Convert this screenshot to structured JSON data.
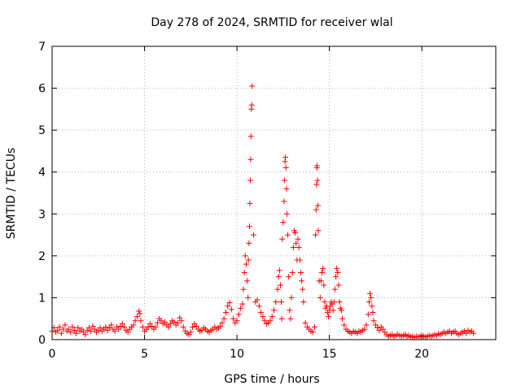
{
  "chart_data": {
    "type": "scatter",
    "title": "Day 278 of 2024, SRMTID for receiver wlal",
    "xlabel": "GPS time / hours",
    "ylabel": "SRMTID / TECUs",
    "xlim": [
      0,
      24
    ],
    "ylim": [
      0,
      7
    ],
    "xticks": [
      0,
      5,
      10,
      15,
      20
    ],
    "yticks": [
      0,
      1,
      2,
      3,
      4,
      5,
      6,
      7
    ],
    "grid": true,
    "marker": "plus",
    "color": "#ff0000",
    "series": [
      {
        "name": "SRMTID",
        "points": [
          [
            0.0,
            0.2
          ],
          [
            0.1,
            0.28
          ],
          [
            0.2,
            0.18
          ],
          [
            0.3,
            0.22
          ],
          [
            0.4,
            0.3
          ],
          [
            0.5,
            0.15
          ],
          [
            0.6,
            0.25
          ],
          [
            0.7,
            0.35
          ],
          [
            0.8,
            0.2
          ],
          [
            0.9,
            0.25
          ],
          [
            1.0,
            0.18
          ],
          [
            1.1,
            0.3
          ],
          [
            1.2,
            0.22
          ],
          [
            1.3,
            0.15
          ],
          [
            1.4,
            0.28
          ],
          [
            1.5,
            0.2
          ],
          [
            1.6,
            0.25
          ],
          [
            1.7,
            0.18
          ],
          [
            1.8,
            0.12
          ],
          [
            1.9,
            0.22
          ],
          [
            2.0,
            0.28
          ],
          [
            2.1,
            0.2
          ],
          [
            2.2,
            0.32
          ],
          [
            2.3,
            0.25
          ],
          [
            2.4,
            0.18
          ],
          [
            2.5,
            0.22
          ],
          [
            2.6,
            0.28
          ],
          [
            2.7,
            0.2
          ],
          [
            2.8,
            0.25
          ],
          [
            2.9,
            0.3
          ],
          [
            3.0,
            0.22
          ],
          [
            3.1,
            0.28
          ],
          [
            3.2,
            0.35
          ],
          [
            3.3,
            0.25
          ],
          [
            3.4,
            0.2
          ],
          [
            3.5,
            0.3
          ],
          [
            3.6,
            0.25
          ],
          [
            3.7,
            0.32
          ],
          [
            3.8,
            0.38
          ],
          [
            3.9,
            0.3
          ],
          [
            4.0,
            0.22
          ],
          [
            4.1,
            0.18
          ],
          [
            4.2,
            0.25
          ],
          [
            4.3,
            0.3
          ],
          [
            4.4,
            0.35
          ],
          [
            4.5,
            0.45
          ],
          [
            4.6,
            0.55
          ],
          [
            4.7,
            0.68
          ],
          [
            4.75,
            0.62
          ],
          [
            4.8,
            0.45
          ],
          [
            4.9,
            0.3
          ],
          [
            5.0,
            0.2
          ],
          [
            5.1,
            0.25
          ],
          [
            5.2,
            0.3
          ],
          [
            5.3,
            0.38
          ],
          [
            5.4,
            0.32
          ],
          [
            5.5,
            0.25
          ],
          [
            5.6,
            0.3
          ],
          [
            5.7,
            0.4
          ],
          [
            5.8,
            0.5
          ],
          [
            5.9,
            0.45
          ],
          [
            6.0,
            0.38
          ],
          [
            6.1,
            0.42
          ],
          [
            6.2,
            0.35
          ],
          [
            6.3,
            0.3
          ],
          [
            6.4,
            0.38
          ],
          [
            6.5,
            0.45
          ],
          [
            6.6,
            0.42
          ],
          [
            6.7,
            0.35
          ],
          [
            6.8,
            0.4
          ],
          [
            6.9,
            0.52
          ],
          [
            7.0,
            0.45
          ],
          [
            7.1,
            0.3
          ],
          [
            7.2,
            0.2
          ],
          [
            7.3,
            0.15
          ],
          [
            7.4,
            0.12
          ],
          [
            7.5,
            0.18
          ],
          [
            7.6,
            0.3
          ],
          [
            7.7,
            0.38
          ],
          [
            7.8,
            0.32
          ],
          [
            7.9,
            0.25
          ],
          [
            8.0,
            0.2
          ],
          [
            8.1,
            0.22
          ],
          [
            8.2,
            0.28
          ],
          [
            8.3,
            0.25
          ],
          [
            8.4,
            0.2
          ],
          [
            8.5,
            0.18
          ],
          [
            8.6,
            0.22
          ],
          [
            8.7,
            0.25
          ],
          [
            8.8,
            0.3
          ],
          [
            8.9,
            0.25
          ],
          [
            9.0,
            0.28
          ],
          [
            9.1,
            0.32
          ],
          [
            9.2,
            0.4
          ],
          [
            9.3,
            0.5
          ],
          [
            9.4,
            0.65
          ],
          [
            9.5,
            0.8
          ],
          [
            9.6,
            0.88
          ],
          [
            9.7,
            0.72
          ],
          [
            9.8,
            0.5
          ],
          [
            9.9,
            0.4
          ],
          [
            10.0,
            0.45
          ],
          [
            10.1,
            0.6
          ],
          [
            10.2,
            0.75
          ],
          [
            10.3,
            0.85
          ],
          [
            10.35,
            1.2
          ],
          [
            10.4,
            1.6
          ],
          [
            10.45,
            2.0
          ],
          [
            10.5,
            1.8
          ],
          [
            10.55,
            1.4
          ],
          [
            10.6,
            1.0
          ],
          [
            10.62,
            1.9
          ],
          [
            10.65,
            2.3
          ],
          [
            10.68,
            2.7
          ],
          [
            10.7,
            3.25
          ],
          [
            10.72,
            3.8
          ],
          [
            10.74,
            4.3
          ],
          [
            10.76,
            4.85
          ],
          [
            10.78,
            5.5
          ],
          [
            10.8,
            5.6
          ],
          [
            10.82,
            6.05
          ],
          [
            10.9,
            2.5
          ],
          [
            11.0,
            0.9
          ],
          [
            11.1,
            0.95
          ],
          [
            11.2,
            0.8
          ],
          [
            11.3,
            0.65
          ],
          [
            11.4,
            0.55
          ],
          [
            11.5,
            0.45
          ],
          [
            11.6,
            0.38
          ],
          [
            11.7,
            0.4
          ],
          [
            11.8,
            0.45
          ],
          [
            11.9,
            0.55
          ],
          [
            12.0,
            0.7
          ],
          [
            12.1,
            0.9
          ],
          [
            12.2,
            1.2
          ],
          [
            12.25,
            1.5
          ],
          [
            12.3,
            1.65
          ],
          [
            12.35,
            1.3
          ],
          [
            12.4,
            0.9
          ],
          [
            12.42,
            0.5
          ],
          [
            12.45,
            2.4
          ],
          [
            12.5,
            2.8
          ],
          [
            12.55,
            3.3
          ],
          [
            12.58,
            3.8
          ],
          [
            12.6,
            4.25
          ],
          [
            12.62,
            4.35
          ],
          [
            12.65,
            4.1
          ],
          [
            12.68,
            3.6
          ],
          [
            12.7,
            3.0
          ],
          [
            12.75,
            2.5
          ],
          [
            12.8,
            1.5
          ],
          [
            12.85,
            0.7
          ],
          [
            12.9,
            0.5
          ],
          [
            12.95,
            1.0
          ],
          [
            13.0,
            1.6
          ],
          [
            13.05,
            2.2
          ],
          [
            13.1,
            2.6
          ],
          [
            13.15,
            2.55
          ],
          [
            13.2,
            2.3
          ],
          [
            13.25,
            1.9
          ],
          [
            13.3,
            2.4
          ],
          [
            13.35,
            2.2
          ],
          [
            13.4,
            1.9
          ],
          [
            13.45,
            1.6
          ],
          [
            13.5,
            1.4
          ],
          [
            13.55,
            1.2
          ],
          [
            13.6,
            0.9
          ],
          [
            13.7,
            0.4
          ],
          [
            13.8,
            0.3
          ],
          [
            13.9,
            0.25
          ],
          [
            14.0,
            0.2
          ],
          [
            14.1,
            0.18
          ],
          [
            14.2,
            0.3
          ],
          [
            14.25,
            2.5
          ],
          [
            14.28,
            3.1
          ],
          [
            14.3,
            3.7
          ],
          [
            14.32,
            4.1
          ],
          [
            14.34,
            4.15
          ],
          [
            14.36,
            3.8
          ],
          [
            14.38,
            3.2
          ],
          [
            14.4,
            2.6
          ],
          [
            14.45,
            1.4
          ],
          [
            14.5,
            1.0
          ],
          [
            14.55,
            1.4
          ],
          [
            14.6,
            1.6
          ],
          [
            14.65,
            1.7
          ],
          [
            14.7,
            1.3
          ],
          [
            14.75,
            0.9
          ],
          [
            14.8,
            0.75
          ],
          [
            14.85,
            0.8
          ],
          [
            14.9,
            0.65
          ],
          [
            14.95,
            0.55
          ],
          [
            15.0,
            0.7
          ],
          [
            15.05,
            0.8
          ],
          [
            15.1,
            0.9
          ],
          [
            15.15,
            0.85
          ],
          [
            15.2,
            0.7
          ],
          [
            15.25,
            0.9
          ],
          [
            15.3,
            1.2
          ],
          [
            15.35,
            1.5
          ],
          [
            15.4,
            1.7
          ],
          [
            15.45,
            1.6
          ],
          [
            15.5,
            1.3
          ],
          [
            15.55,
            0.9
          ],
          [
            15.6,
            0.75
          ],
          [
            15.65,
            0.7
          ],
          [
            15.7,
            0.5
          ],
          [
            15.8,
            0.35
          ],
          [
            15.9,
            0.25
          ],
          [
            16.0,
            0.2
          ],
          [
            16.1,
            0.18
          ],
          [
            16.2,
            0.15
          ],
          [
            16.3,
            0.2
          ],
          [
            16.4,
            0.18
          ],
          [
            16.5,
            0.15
          ],
          [
            16.6,
            0.2
          ],
          [
            16.7,
            0.18
          ],
          [
            16.8,
            0.22
          ],
          [
            16.9,
            0.25
          ],
          [
            17.0,
            0.35
          ],
          [
            17.1,
            0.6
          ],
          [
            17.15,
            0.9
          ],
          [
            17.2,
            1.1
          ],
          [
            17.25,
            1.0
          ],
          [
            17.3,
            0.8
          ],
          [
            17.35,
            0.65
          ],
          [
            17.4,
            0.45
          ],
          [
            17.5,
            0.35
          ],
          [
            17.6,
            0.28
          ],
          [
            17.7,
            0.22
          ],
          [
            17.8,
            0.3
          ],
          [
            17.9,
            0.25
          ],
          [
            18.0,
            0.18
          ],
          [
            18.1,
            0.12
          ],
          [
            18.2,
            0.08
          ],
          [
            18.3,
            0.1
          ],
          [
            18.4,
            0.12
          ],
          [
            18.5,
            0.08
          ],
          [
            18.6,
            0.1
          ],
          [
            18.7,
            0.12
          ],
          [
            18.8,
            0.1
          ],
          [
            18.9,
            0.08
          ],
          [
            19.0,
            0.1
          ],
          [
            19.1,
            0.12
          ],
          [
            19.2,
            0.08
          ],
          [
            19.3,
            0.1
          ],
          [
            19.4,
            0.06
          ],
          [
            19.5,
            0.08
          ],
          [
            19.6,
            0.05
          ],
          [
            19.7,
            0.08
          ],
          [
            19.8,
            0.06
          ],
          [
            19.9,
            0.08
          ],
          [
            20.0,
            0.1
          ],
          [
            20.1,
            0.08
          ],
          [
            20.2,
            0.06
          ],
          [
            20.3,
            0.08
          ],
          [
            20.4,
            0.1
          ],
          [
            20.5,
            0.08
          ],
          [
            20.6,
            0.1
          ],
          [
            20.7,
            0.12
          ],
          [
            20.8,
            0.1
          ],
          [
            20.9,
            0.14
          ],
          [
            21.0,
            0.12
          ],
          [
            21.1,
            0.15
          ],
          [
            21.2,
            0.18
          ],
          [
            21.3,
            0.15
          ],
          [
            21.4,
            0.18
          ],
          [
            21.5,
            0.2
          ],
          [
            21.6,
            0.15
          ],
          [
            21.7,
            0.18
          ],
          [
            21.8,
            0.2
          ],
          [
            21.9,
            0.15
          ],
          [
            22.0,
            0.12
          ],
          [
            22.1,
            0.15
          ],
          [
            22.2,
            0.18
          ],
          [
            22.3,
            0.2
          ],
          [
            22.4,
            0.15
          ],
          [
            22.5,
            0.22
          ],
          [
            22.6,
            0.18
          ],
          [
            22.7,
            0.2
          ],
          [
            22.8,
            0.15
          ]
        ]
      }
    ]
  }
}
